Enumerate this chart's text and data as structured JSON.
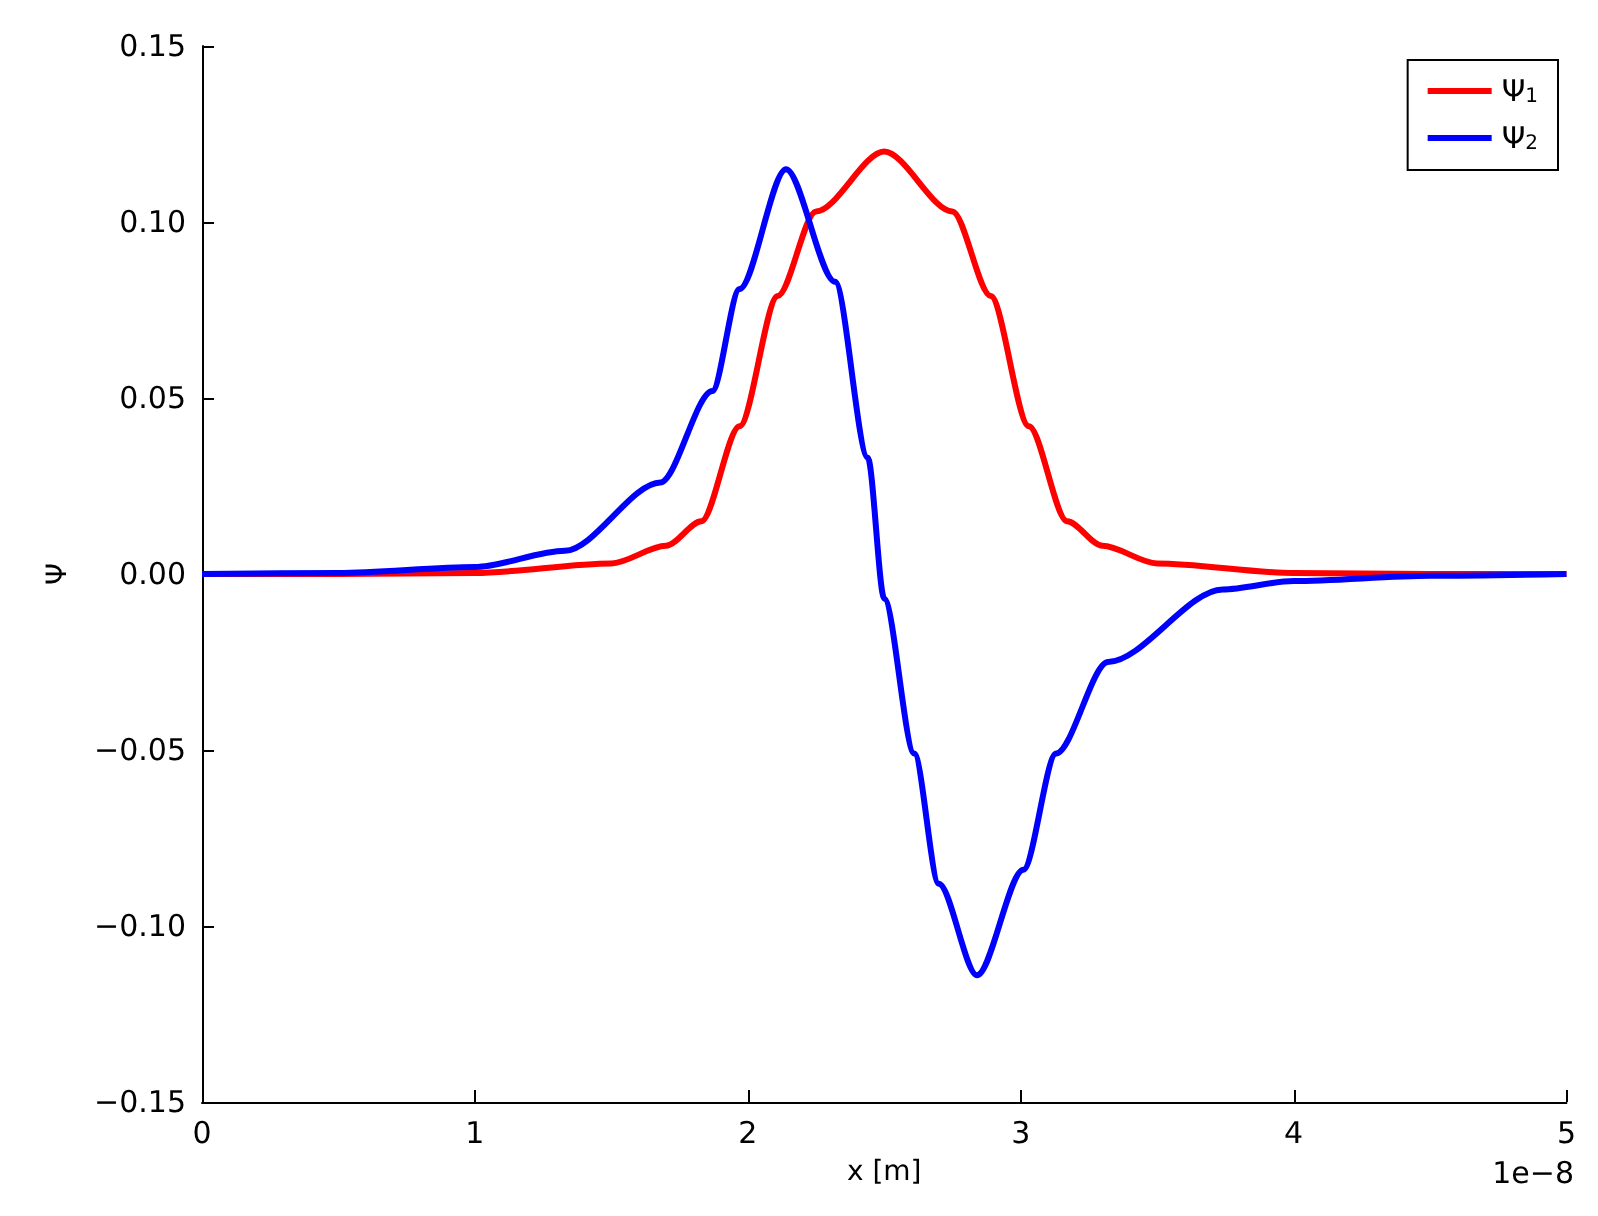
{
  "chart_data": {
    "type": "line",
    "xlabel": "x [m]",
    "ylabel": "Ψ",
    "annotations": [
      "1e−8"
    ],
    "xlim": [
      0,
      5
    ],
    "ylim": [
      -0.15,
      0.15
    ],
    "xticks": [
      0,
      1,
      2,
      3,
      4,
      5
    ],
    "yticks": [
      {
        "value": -0.15,
        "label": "−0.15"
      },
      {
        "value": -0.1,
        "label": "−0.10"
      },
      {
        "value": -0.05,
        "label": "−0.05"
      },
      {
        "value": 0,
        "label": "0.00"
      },
      {
        "value": 0.05,
        "label": "0.05"
      },
      {
        "value": 0.1,
        "label": "0.10"
      },
      {
        "value": 0.15,
        "label": "0.15"
      }
    ],
    "grid": false,
    "legend": "top right",
    "marker": "none",
    "line_style": "solid",
    "series": [
      {
        "name": "Ψ$_{1}$",
        "color": "#ff0000",
        "x": [
          0,
          0.5,
          1,
          1.5,
          1.7,
          1.83,
          1.97,
          2.11,
          2.25,
          2.5,
          2.75,
          2.89,
          3.03,
          3.17,
          3.3,
          3.5,
          4,
          4.5,
          5
        ],
        "values": [
          0,
          0,
          0.0003,
          0.003,
          0.008,
          0.015,
          0.042,
          0.079,
          0.103,
          0.12,
          0.103,
          0.079,
          0.042,
          0.015,
          0.008,
          0.003,
          0.0003,
          0,
          0
        ]
      },
      {
        "name": "Ψ$_{2}$",
        "color": "#0000ff",
        "x": [
          0,
          0.5,
          1,
          1.33,
          1.68,
          1.87,
          1.97,
          2.14,
          2.32,
          2.44,
          2.5,
          2.61,
          2.7,
          2.84,
          3.01,
          3.13,
          3.32,
          3.74,
          4,
          4.5,
          5
        ],
        "values": [
          0,
          0.0003,
          0.002,
          0.0066,
          0.026,
          0.052,
          0.081,
          0.115,
          0.083,
          0.033,
          -0.007,
          -0.051,
          -0.088,
          -0.114,
          -0.084,
          -0.051,
          -0.025,
          -0.0044,
          -0.002,
          -0.0005,
          0
        ]
      }
    ]
  }
}
